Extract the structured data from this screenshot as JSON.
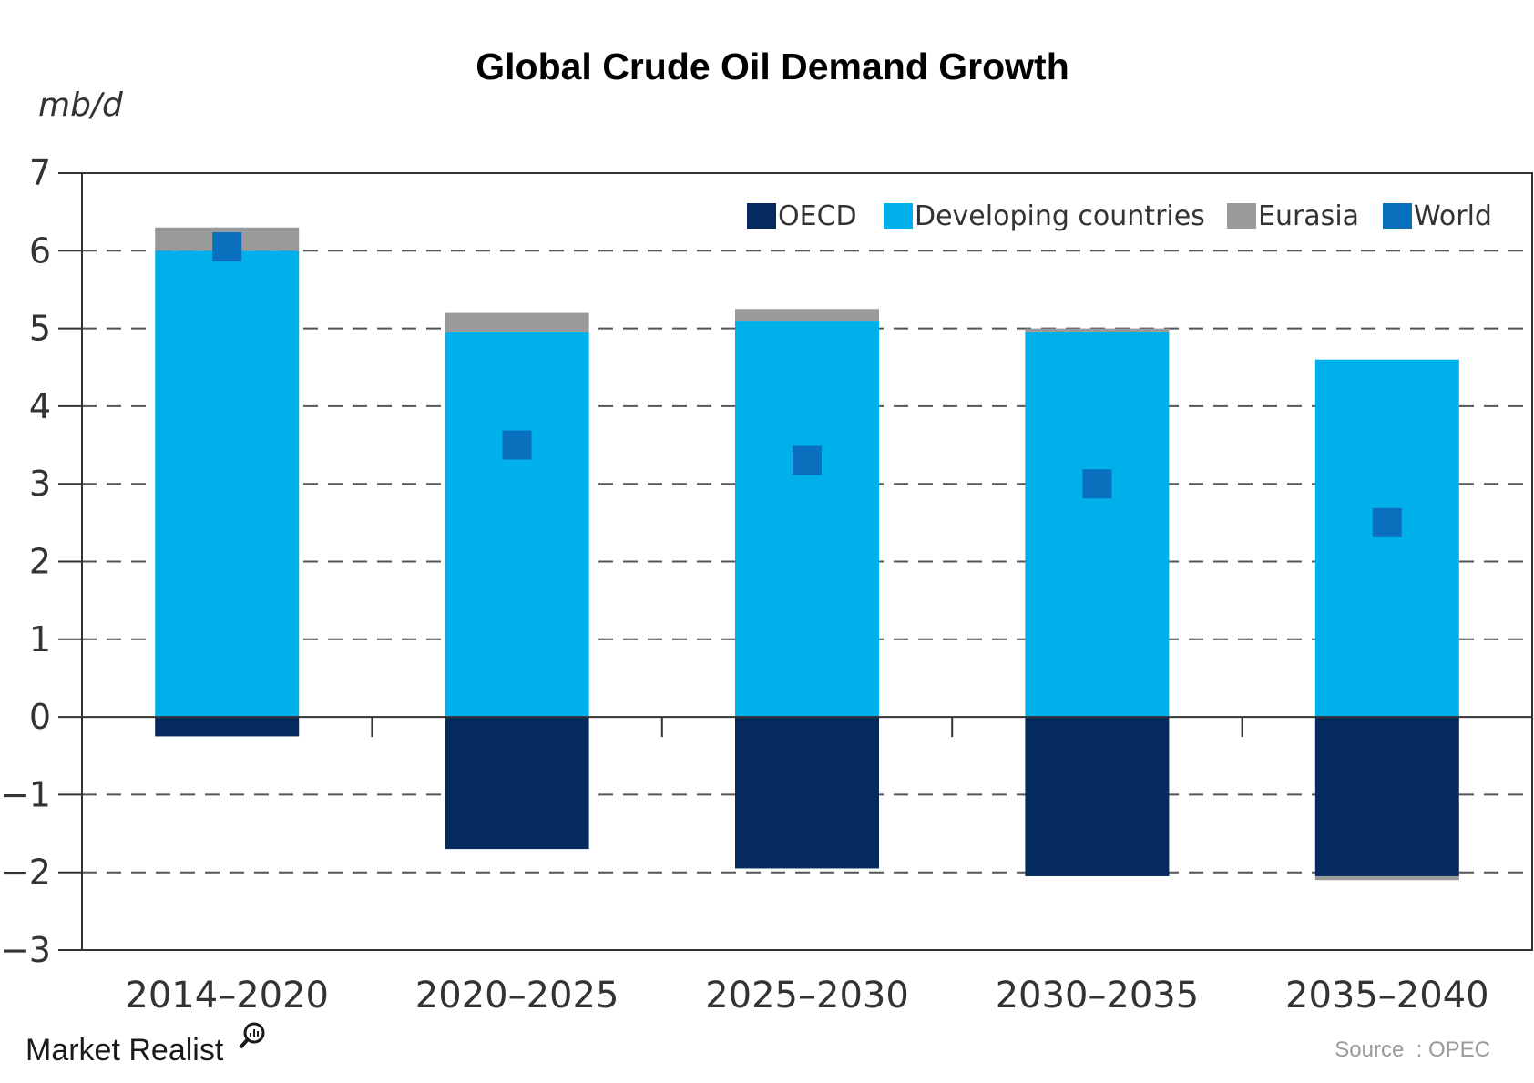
{
  "chart_data": {
    "type": "bar",
    "stacked": true,
    "title": "Global Crude Oil Demand Growth",
    "ylabel": "mb/d",
    "xlabel": "",
    "ylim": [
      -3,
      7
    ],
    "yticks": [
      7,
      6,
      5,
      4,
      3,
      2,
      1,
      0,
      -1,
      -2,
      -3
    ],
    "ytick_labels": [
      "7",
      "6",
      "5",
      "4",
      "3",
      "2",
      "1",
      "0",
      "−1",
      "−2",
      "−3"
    ],
    "grid": "horizontal dashed",
    "legend_position": "top-right",
    "categories": [
      "2014–2020",
      "2020–2025",
      "2025–2030",
      "2030–2035",
      "2035–2040"
    ],
    "series": [
      {
        "name": "OECD",
        "type": "bar",
        "color": "#062a5e",
        "values": [
          -0.25,
          -1.7,
          -1.95,
          -2.05,
          -2.05
        ]
      },
      {
        "name": "Developing countries",
        "type": "bar",
        "color": "#00b0eb",
        "values": [
          6.0,
          4.95,
          5.1,
          4.95,
          4.6
        ]
      },
      {
        "name": "Eurasia",
        "type": "bar",
        "color": "#9a9a9a",
        "values": [
          0.3,
          0.25,
          0.15,
          0.05,
          -0.05
        ]
      },
      {
        "name": "World",
        "type": "marker",
        "color": "#0a6fbd",
        "values": [
          6.05,
          3.5,
          3.3,
          3.0,
          2.5
        ]
      }
    ]
  },
  "footer": {
    "brand": "Market Realist",
    "source": "Source  : OPEC"
  }
}
